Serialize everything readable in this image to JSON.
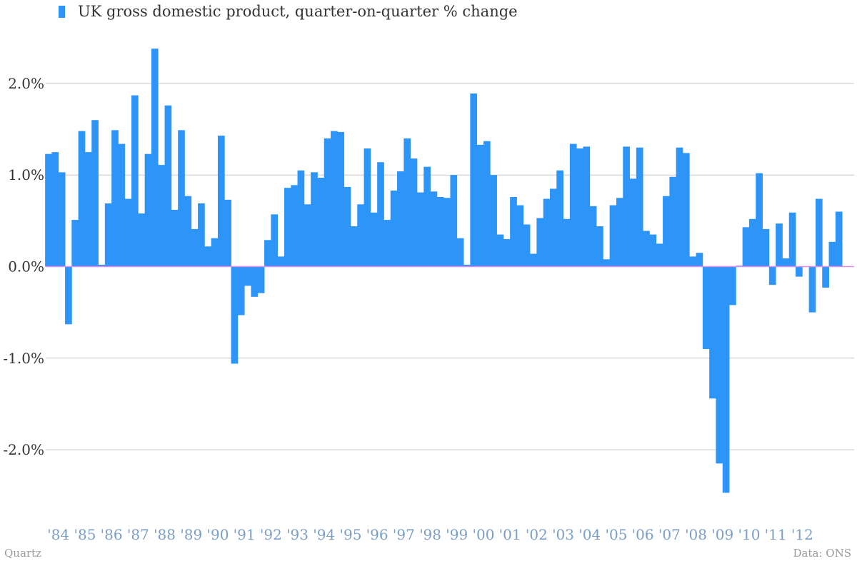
{
  "colors": {
    "bar": "#2d95f8",
    "grid": "#c8c8c8",
    "zero_line": "#e888e8",
    "tick_x": "#7b9fc4",
    "tick_y": "#333333"
  },
  "credits": {
    "left": "Quartz",
    "right": "Data: ONS"
  },
  "chart_data": {
    "type": "bar",
    "title": "",
    "xlabel": "",
    "ylabel": "",
    "legend": "top-left",
    "grid": true,
    "ylim": [
      -2.8,
      2.5
    ],
    "series": [
      {
        "name": "UK gross domestic product, quarter-on-quarter % change",
        "values": [
          1.23,
          1.25,
          1.03,
          -0.63,
          0.51,
          1.48,
          1.25,
          1.6,
          0.02,
          0.69,
          1.49,
          1.34,
          0.74,
          1.87,
          0.58,
          1.23,
          2.38,
          1.11,
          1.76,
          0.62,
          1.49,
          0.77,
          0.41,
          0.69,
          0.22,
          0.31,
          1.43,
          0.73,
          -1.06,
          -0.53,
          -0.21,
          -0.33,
          -0.29,
          0.29,
          0.57,
          0.11,
          0.86,
          0.89,
          1.05,
          0.68,
          1.03,
          0.97,
          1.4,
          1.48,
          1.47,
          0.87,
          0.44,
          0.68,
          1.29,
          0.59,
          1.14,
          0.51,
          0.83,
          1.04,
          1.4,
          1.18,
          0.81,
          1.09,
          0.82,
          0.76,
          0.75,
          1.0,
          0.31,
          0.02,
          1.89,
          1.33,
          1.37,
          1.0,
          0.35,
          0.3,
          0.76,
          0.67,
          0.46,
          0.14,
          0.53,
          0.74,
          0.85,
          1.05,
          0.52,
          1.34,
          1.29,
          1.31,
          0.66,
          0.44,
          0.08,
          0.67,
          0.75,
          1.31,
          0.96,
          1.3,
          0.39,
          0.35,
          0.25,
          0.77,
          0.98,
          1.3,
          1.24,
          0.11,
          0.15,
          -0.9,
          -1.44,
          -2.15,
          -2.47,
          -0.42,
          0.01,
          0.43,
          0.52,
          1.02,
          0.41,
          -0.2,
          0.47,
          0.09,
          0.59,
          -0.11,
          0.0,
          -0.5,
          0.74,
          -0.23,
          0.27,
          0.6
        ]
      }
    ],
    "y_ticks": [
      {
        "value": 2.0,
        "label": "2.0%"
      },
      {
        "value": 1.0,
        "label": "1.0%"
      },
      {
        "value": 0.0,
        "label": "0.0%"
      },
      {
        "value": -1.0,
        "label": "-1.0%"
      },
      {
        "value": -2.0,
        "label": "-2.0%"
      }
    ],
    "x_tick_labels": [
      "'84",
      "'85",
      "'86",
      "'87",
      "'88",
      "'89",
      "'90",
      "'91",
      "'92",
      "'93",
      "'94",
      "'95",
      "'96",
      "'97",
      "'98",
      "'99",
      "'00",
      "'01",
      "'02",
      "'03",
      "'04",
      "'05",
      "'06",
      "'07",
      "'08",
      "'09",
      "'10",
      "'11",
      "'12"
    ]
  }
}
